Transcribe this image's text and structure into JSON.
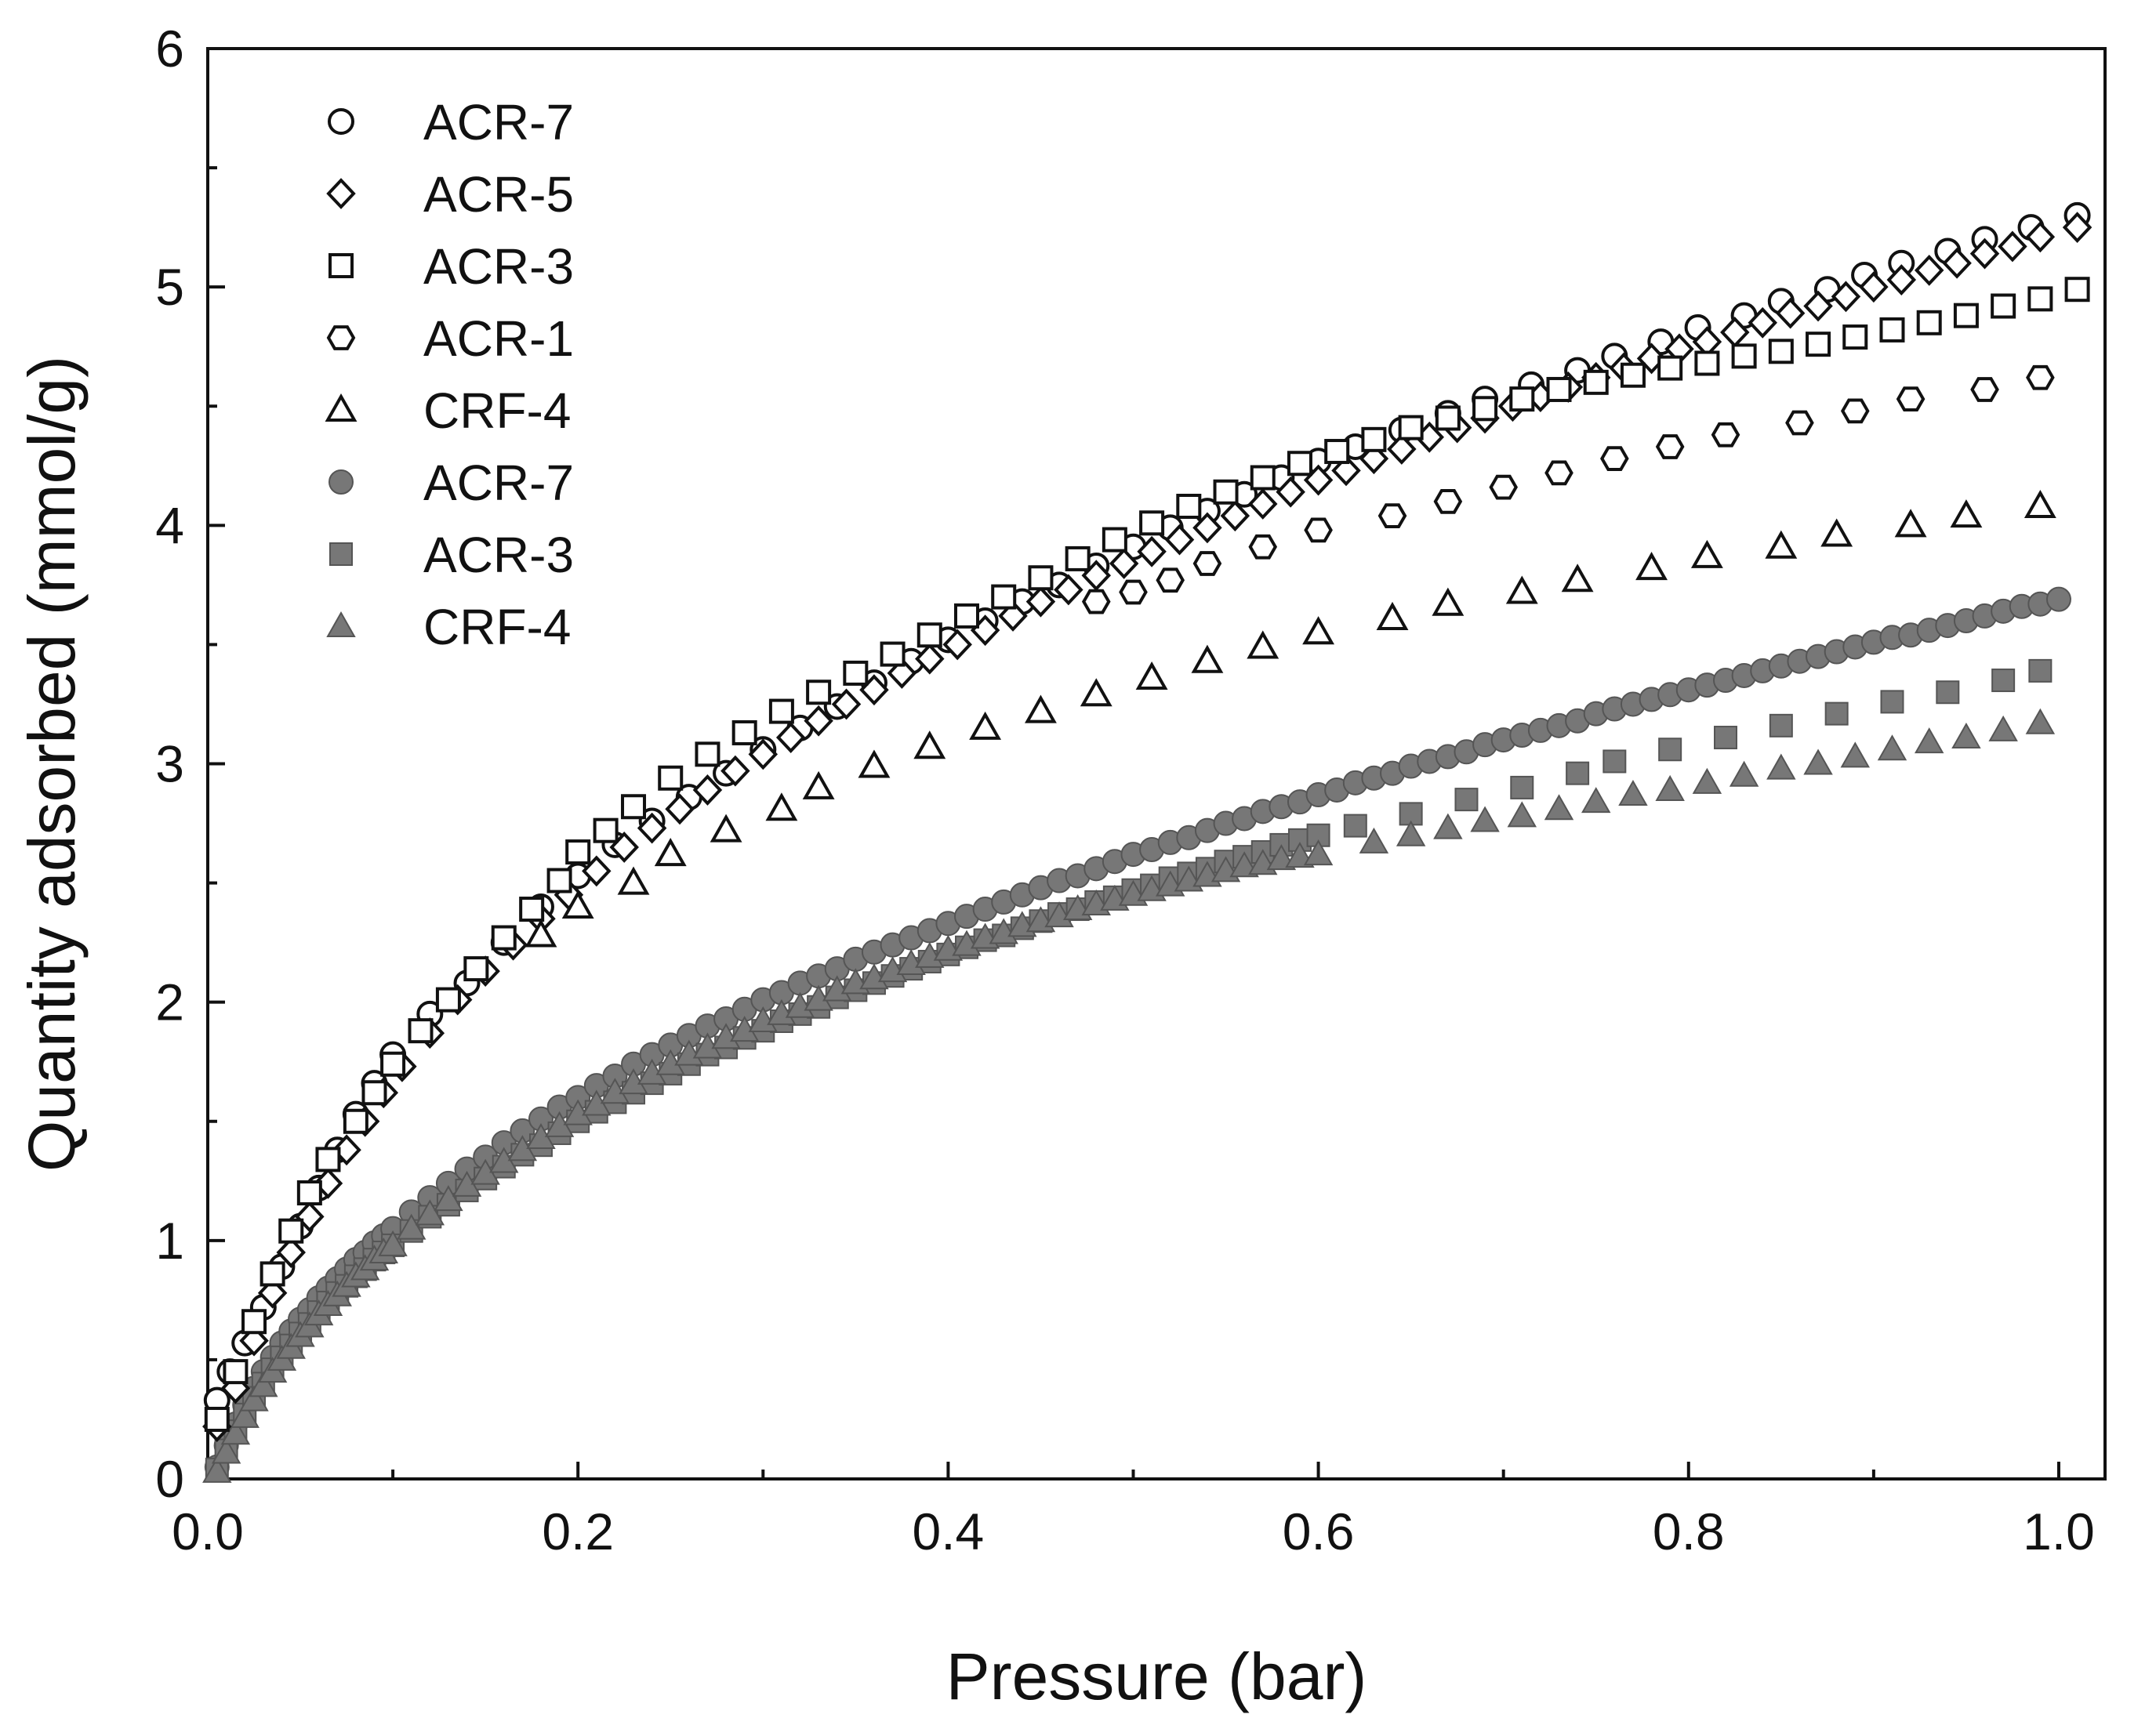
{
  "chart_data": {
    "type": "scatter",
    "title": "",
    "xlabel": "Pressure (bar)",
    "ylabel": "Quantity adsorbed (mmol/g)",
    "xlim": [
      0.0,
      1.025
    ],
    "ylim": [
      0,
      6
    ],
    "x_ticks": [
      0.0,
      0.2,
      0.4,
      0.6,
      0.8,
      1.0
    ],
    "x_tick_labels": [
      "0.0",
      "0.2",
      "0.4",
      "0.6",
      "0.8",
      "1.0"
    ],
    "y_ticks": [
      0,
      1,
      2,
      3,
      4,
      5,
      6
    ],
    "y_tick_labels": [
      "0",
      "1",
      "2",
      "3",
      "4",
      "5",
      "6"
    ],
    "grid": false,
    "legend_position": "top-left",
    "colors": {
      "open_stroke": "#111111",
      "open_fill": "#ffffff",
      "filled": "#777777",
      "filled_stroke": "#555555"
    },
    "series": [
      {
        "name": "ACR-7",
        "marker": "circle",
        "filled": false,
        "x": [
          0.005,
          0.012,
          0.02,
          0.03,
          0.04,
          0.05,
          0.06,
          0.07,
          0.08,
          0.09,
          0.1,
          0.12,
          0.14,
          0.16,
          0.18,
          0.2,
          0.22,
          0.24,
          0.26,
          0.28,
          0.3,
          0.32,
          0.34,
          0.36,
          0.38,
          0.4,
          0.42,
          0.44,
          0.46,
          0.48,
          0.5,
          0.52,
          0.54,
          0.56,
          0.58,
          0.6,
          0.62,
          0.645,
          0.67,
          0.69,
          0.715,
          0.74,
          0.76,
          0.785,
          0.805,
          0.83,
          0.85,
          0.875,
          0.895,
          0.915,
          0.94,
          0.96,
          0.985,
          1.01
        ],
        "y": [
          0.33,
          0.45,
          0.57,
          0.72,
          0.89,
          1.06,
          1.22,
          1.38,
          1.53,
          1.66,
          1.78,
          1.95,
          2.08,
          2.25,
          2.4,
          2.53,
          2.66,
          2.76,
          2.86,
          2.96,
          3.06,
          3.15,
          3.24,
          3.34,
          3.43,
          3.52,
          3.6,
          3.68,
          3.75,
          3.83,
          3.91,
          3.99,
          4.06,
          4.13,
          4.2,
          4.27,
          4.33,
          4.4,
          4.47,
          4.53,
          4.59,
          4.65,
          4.71,
          4.77,
          4.83,
          4.88,
          4.94,
          4.99,
          5.05,
          5.1,
          5.15,
          5.2,
          5.25,
          5.3
        ]
      },
      {
        "name": "ACR-5",
        "marker": "diamond",
        "filled": false,
        "x": [
          0.005,
          0.015,
          0.025,
          0.035,
          0.045,
          0.055,
          0.065,
          0.075,
          0.085,
          0.095,
          0.105,
          0.12,
          0.135,
          0.15,
          0.165,
          0.18,
          0.195,
          0.21,
          0.225,
          0.24,
          0.255,
          0.27,
          0.285,
          0.3,
          0.315,
          0.33,
          0.345,
          0.36,
          0.375,
          0.39,
          0.405,
          0.42,
          0.435,
          0.45,
          0.465,
          0.48,
          0.495,
          0.51,
          0.525,
          0.54,
          0.555,
          0.57,
          0.585,
          0.6,
          0.615,
          0.63,
          0.645,
          0.66,
          0.675,
          0.69,
          0.705,
          0.72,
          0.735,
          0.75,
          0.765,
          0.78,
          0.795,
          0.81,
          0.825,
          0.84,
          0.855,
          0.87,
          0.885,
          0.9,
          0.915,
          0.93,
          0.945,
          0.96,
          0.975,
          0.99,
          1.01
        ],
        "y": [
          0.22,
          0.38,
          0.58,
          0.78,
          0.95,
          1.1,
          1.24,
          1.38,
          1.5,
          1.62,
          1.73,
          1.87,
          2.01,
          2.13,
          2.24,
          2.35,
          2.45,
          2.55,
          2.65,
          2.73,
          2.81,
          2.89,
          2.97,
          3.04,
          3.11,
          3.18,
          3.25,
          3.31,
          3.38,
          3.44,
          3.5,
          3.56,
          3.62,
          3.68,
          3.73,
          3.79,
          3.84,
          3.89,
          3.94,
          3.99,
          4.04,
          4.09,
          4.14,
          4.19,
          4.23,
          4.28,
          4.32,
          4.37,
          4.41,
          4.45,
          4.5,
          4.54,
          4.58,
          4.62,
          4.66,
          4.7,
          4.74,
          4.77,
          4.81,
          4.85,
          4.89,
          4.92,
          4.96,
          5.0,
          5.03,
          5.07,
          5.1,
          5.14,
          5.17,
          5.21,
          5.25
        ]
      },
      {
        "name": "ACR-3",
        "marker": "square",
        "filled": false,
        "x": [
          0.005,
          0.015,
          0.025,
          0.035,
          0.045,
          0.055,
          0.065,
          0.08,
          0.09,
          0.1,
          0.115,
          0.13,
          0.145,
          0.16,
          0.175,
          0.19,
          0.2,
          0.215,
          0.23,
          0.25,
          0.27,
          0.29,
          0.31,
          0.33,
          0.35,
          0.37,
          0.39,
          0.41,
          0.43,
          0.45,
          0.47,
          0.49,
          0.51,
          0.53,
          0.55,
          0.57,
          0.59,
          0.61,
          0.63,
          0.65,
          0.67,
          0.69,
          0.71,
          0.73,
          0.75,
          0.77,
          0.79,
          0.81,
          0.83,
          0.85,
          0.87,
          0.89,
          0.91,
          0.93,
          0.95,
          0.97,
          0.99,
          1.01
        ],
        "y": [
          0.25,
          0.45,
          0.66,
          0.86,
          1.04,
          1.2,
          1.34,
          1.5,
          1.62,
          1.74,
          1.88,
          2.01,
          2.14,
          2.27,
          2.39,
          2.51,
          2.63,
          2.72,
          2.82,
          2.94,
          3.04,
          3.13,
          3.22,
          3.3,
          3.38,
          3.46,
          3.54,
          3.62,
          3.7,
          3.78,
          3.86,
          3.94,
          4.01,
          4.08,
          4.14,
          4.2,
          4.26,
          4.31,
          4.36,
          4.41,
          4.45,
          4.49,
          4.53,
          4.57,
          4.6,
          4.63,
          4.66,
          4.68,
          4.71,
          4.73,
          4.76,
          4.79,
          4.82,
          4.85,
          4.88,
          4.92,
          4.95,
          4.99
        ]
      },
      {
        "name": "ACR-1",
        "marker": "hexagon",
        "filled": false,
        "x": [
          0.48,
          0.5,
          0.52,
          0.54,
          0.57,
          0.6,
          0.64,
          0.67,
          0.7,
          0.73,
          0.76,
          0.79,
          0.82,
          0.86,
          0.89,
          0.92,
          0.96,
          0.99
        ],
        "y": [
          3.68,
          3.72,
          3.77,
          3.84,
          3.91,
          3.98,
          4.04,
          4.1,
          4.16,
          4.22,
          4.28,
          4.33,
          4.38,
          4.43,
          4.48,
          4.53,
          4.57,
          4.62
        ]
      },
      {
        "name": "CRF-4",
        "marker": "triangle",
        "filled": false,
        "x": [
          0.18,
          0.2,
          0.23,
          0.25,
          0.28,
          0.31,
          0.33,
          0.36,
          0.39,
          0.42,
          0.45,
          0.48,
          0.51,
          0.54,
          0.57,
          0.6,
          0.64,
          0.67,
          0.71,
          0.74,
          0.78,
          0.81,
          0.85,
          0.88,
          0.92,
          0.95,
          0.99
        ],
        "y": [
          2.28,
          2.4,
          2.5,
          2.62,
          2.72,
          2.81,
          2.9,
          2.99,
          3.07,
          3.15,
          3.22,
          3.29,
          3.36,
          3.43,
          3.49,
          3.55,
          3.61,
          3.67,
          3.72,
          3.77,
          3.82,
          3.87,
          3.91,
          3.96,
          4.0,
          4.04,
          4.08
        ]
      },
      {
        "name": "ACR-7",
        "marker": "circle",
        "filled": true,
        "x": [
          0.005,
          0.01,
          0.015,
          0.02,
          0.025,
          0.03,
          0.035,
          0.04,
          0.045,
          0.05,
          0.055,
          0.06,
          0.065,
          0.07,
          0.075,
          0.08,
          0.085,
          0.09,
          0.095,
          0.1,
          0.11,
          0.12,
          0.13,
          0.14,
          0.15,
          0.16,
          0.17,
          0.18,
          0.19,
          0.2,
          0.21,
          0.22,
          0.23,
          0.24,
          0.25,
          0.26,
          0.27,
          0.28,
          0.29,
          0.3,
          0.31,
          0.32,
          0.33,
          0.34,
          0.35,
          0.36,
          0.37,
          0.38,
          0.39,
          0.4,
          0.41,
          0.42,
          0.43,
          0.44,
          0.45,
          0.46,
          0.47,
          0.48,
          0.49,
          0.5,
          0.51,
          0.52,
          0.53,
          0.54,
          0.55,
          0.56,
          0.57,
          0.58,
          0.59,
          0.6,
          0.61,
          0.62,
          0.63,
          0.64,
          0.65,
          0.66,
          0.67,
          0.68,
          0.69,
          0.7,
          0.71,
          0.72,
          0.73,
          0.74,
          0.75,
          0.76,
          0.77,
          0.78,
          0.79,
          0.8,
          0.81,
          0.82,
          0.83,
          0.84,
          0.85,
          0.86,
          0.87,
          0.88,
          0.89,
          0.9,
          0.91,
          0.92,
          0.93,
          0.94,
          0.95,
          0.96,
          0.97,
          0.98,
          0.99,
          1.0
        ],
        "y": [
          0.05,
          0.14,
          0.23,
          0.31,
          0.38,
          0.45,
          0.51,
          0.57,
          0.62,
          0.67,
          0.71,
          0.76,
          0.8,
          0.84,
          0.88,
          0.92,
          0.95,
          0.99,
          1.02,
          1.05,
          1.12,
          1.18,
          1.24,
          1.3,
          1.35,
          1.41,
          1.46,
          1.51,
          1.56,
          1.6,
          1.65,
          1.69,
          1.74,
          1.78,
          1.82,
          1.86,
          1.9,
          1.93,
          1.97,
          2.01,
          2.04,
          2.08,
          2.11,
          2.14,
          2.18,
          2.21,
          2.24,
          2.27,
          2.3,
          2.33,
          2.36,
          2.39,
          2.42,
          2.45,
          2.48,
          2.51,
          2.53,
          2.56,
          2.59,
          2.62,
          2.64,
          2.67,
          2.69,
          2.72,
          2.75,
          2.77,
          2.8,
          2.82,
          2.84,
          2.87,
          2.89,
          2.92,
          2.94,
          2.96,
          2.99,
          3.01,
          3.03,
          3.05,
          3.08,
          3.1,
          3.12,
          3.14,
          3.16,
          3.18,
          3.21,
          3.23,
          3.25,
          3.27,
          3.29,
          3.31,
          3.33,
          3.35,
          3.37,
          3.39,
          3.41,
          3.43,
          3.45,
          3.47,
          3.49,
          3.51,
          3.53,
          3.54,
          3.56,
          3.58,
          3.6,
          3.62,
          3.64,
          3.66,
          3.67,
          3.69
        ]
      },
      {
        "name": "ACR-3",
        "marker": "square",
        "filled": true,
        "x": [
          0.005,
          0.01,
          0.015,
          0.02,
          0.025,
          0.03,
          0.035,
          0.04,
          0.045,
          0.05,
          0.055,
          0.06,
          0.065,
          0.07,
          0.075,
          0.08,
          0.085,
          0.09,
          0.095,
          0.1,
          0.11,
          0.12,
          0.13,
          0.14,
          0.15,
          0.16,
          0.17,
          0.18,
          0.19,
          0.2,
          0.21,
          0.22,
          0.23,
          0.24,
          0.25,
          0.26,
          0.27,
          0.28,
          0.29,
          0.3,
          0.31,
          0.32,
          0.33,
          0.34,
          0.35,
          0.36,
          0.37,
          0.38,
          0.39,
          0.4,
          0.41,
          0.42,
          0.43,
          0.44,
          0.45,
          0.46,
          0.47,
          0.48,
          0.49,
          0.5,
          0.51,
          0.52,
          0.53,
          0.54,
          0.55,
          0.56,
          0.57,
          0.58,
          0.59,
          0.6,
          0.62,
          0.65,
          0.68,
          0.71,
          0.74,
          0.76,
          0.79,
          0.82,
          0.85,
          0.88,
          0.91,
          0.94,
          0.97,
          0.99
        ],
        "y": [
          0.04,
          0.12,
          0.2,
          0.27,
          0.34,
          0.4,
          0.46,
          0.51,
          0.56,
          0.61,
          0.65,
          0.7,
          0.74,
          0.78,
          0.81,
          0.85,
          0.88,
          0.92,
          0.95,
          0.98,
          1.04,
          1.1,
          1.15,
          1.21,
          1.26,
          1.31,
          1.36,
          1.4,
          1.45,
          1.5,
          1.54,
          1.58,
          1.62,
          1.66,
          1.7,
          1.74,
          1.78,
          1.81,
          1.85,
          1.88,
          1.92,
          1.95,
          1.98,
          2.02,
          2.05,
          2.08,
          2.11,
          2.14,
          2.17,
          2.2,
          2.23,
          2.26,
          2.28,
          2.31,
          2.34,
          2.37,
          2.39,
          2.42,
          2.44,
          2.47,
          2.49,
          2.52,
          2.54,
          2.56,
          2.59,
          2.61,
          2.63,
          2.66,
          2.68,
          2.7,
          2.74,
          2.79,
          2.85,
          2.9,
          2.96,
          3.01,
          3.06,
          3.11,
          3.16,
          3.21,
          3.26,
          3.3,
          3.35,
          3.39
        ]
      },
      {
        "name": "CRF-4",
        "marker": "triangle",
        "filled": true,
        "x": [
          0.005,
          0.01,
          0.015,
          0.02,
          0.025,
          0.03,
          0.035,
          0.04,
          0.045,
          0.05,
          0.055,
          0.06,
          0.065,
          0.07,
          0.075,
          0.08,
          0.085,
          0.09,
          0.095,
          0.1,
          0.11,
          0.12,
          0.13,
          0.14,
          0.15,
          0.16,
          0.17,
          0.18,
          0.19,
          0.2,
          0.21,
          0.22,
          0.23,
          0.24,
          0.25,
          0.26,
          0.27,
          0.28,
          0.29,
          0.3,
          0.31,
          0.32,
          0.33,
          0.34,
          0.35,
          0.36,
          0.37,
          0.38,
          0.39,
          0.4,
          0.41,
          0.42,
          0.43,
          0.44,
          0.45,
          0.46,
          0.47,
          0.48,
          0.49,
          0.5,
          0.51,
          0.52,
          0.53,
          0.54,
          0.55,
          0.56,
          0.57,
          0.58,
          0.59,
          0.6,
          0.63,
          0.65,
          0.67,
          0.69,
          0.71,
          0.73,
          0.75,
          0.77,
          0.79,
          0.81,
          0.83,
          0.85,
          0.87,
          0.89,
          0.91,
          0.93,
          0.95,
          0.97,
          0.99
        ],
        "y": [
          0.03,
          0.11,
          0.19,
          0.26,
          0.33,
          0.39,
          0.45,
          0.5,
          0.55,
          0.6,
          0.64,
          0.69,
          0.73,
          0.77,
          0.81,
          0.85,
          0.88,
          0.92,
          0.95,
          0.98,
          1.05,
          1.11,
          1.17,
          1.23,
          1.28,
          1.33,
          1.38,
          1.43,
          1.48,
          1.53,
          1.57,
          1.62,
          1.66,
          1.7,
          1.74,
          1.78,
          1.81,
          1.85,
          1.88,
          1.92,
          1.95,
          1.98,
          2.01,
          2.05,
          2.08,
          2.1,
          2.13,
          2.16,
          2.19,
          2.22,
          2.24,
          2.27,
          2.29,
          2.32,
          2.34,
          2.36,
          2.39,
          2.41,
          2.43,
          2.45,
          2.47,
          2.49,
          2.51,
          2.53,
          2.55,
          2.57,
          2.58,
          2.6,
          2.61,
          2.62,
          2.67,
          2.7,
          2.73,
          2.76,
          2.78,
          2.81,
          2.84,
          2.87,
          2.89,
          2.92,
          2.95,
          2.98,
          3.0,
          3.03,
          3.06,
          3.09,
          3.11,
          3.14,
          3.17
        ]
      }
    ]
  }
}
